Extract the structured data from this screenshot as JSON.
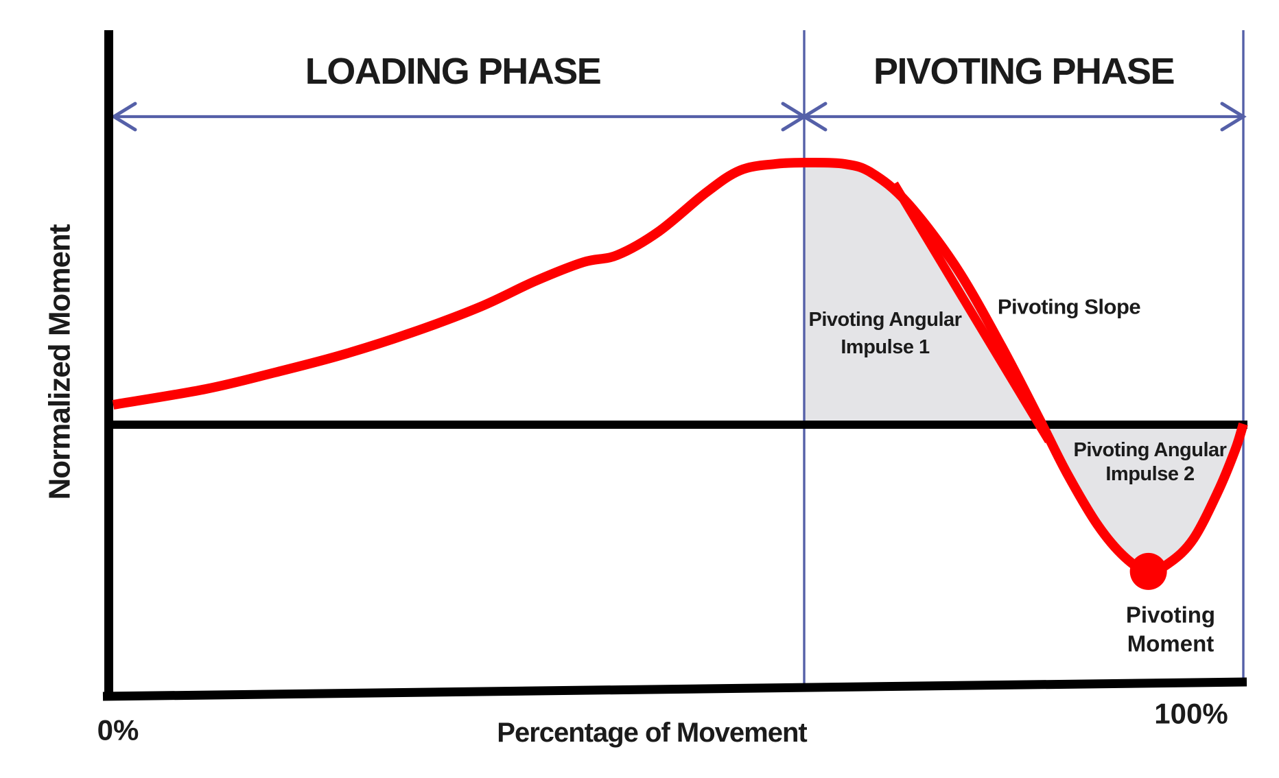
{
  "chart": {
    "title_loading": "LOADING PHASE",
    "title_pivoting": "PIVOTING PHASE",
    "y_axis_label": "Normalized Moment",
    "x_axis_label": "Percentage of Movement",
    "tick_left": "0%",
    "tick_right": "100%",
    "annotations": {
      "impulse1_line1": "Pivoting Angular",
      "impulse1_line2": "Impulse 1",
      "slope": "Pivoting Slope",
      "impulse2_line1": "Pivoting Angular",
      "impulse2_line2": "Impulse 2",
      "moment_line1": "Pivoting",
      "moment_line2": "Moment"
    },
    "colors": {
      "curve": "#fe0000",
      "guide": "#5560a8",
      "region_fill": "#e4e4e7",
      "axis": "#000000",
      "text": "#1b1b1b"
    }
  },
  "chart_data": {
    "type": "line",
    "title": "",
    "xlabel": "Percentage of Movement",
    "ylabel": "Normalized Moment",
    "x_range_percent": [
      0,
      100
    ],
    "y_range_normalized": [
      -0.75,
      1.1
    ],
    "grid": false,
    "legend": false,
    "phases": [
      {
        "name": "LOADING PHASE",
        "x_percent": [
          0,
          61.1
        ]
      },
      {
        "name": "PIVOTING PHASE",
        "x_percent": [
          61.1,
          100
        ]
      }
    ],
    "series": [
      {
        "name": "Normalized Moment",
        "points": [
          [
            0,
            0.076
          ],
          [
            8.2,
            0.136
          ],
          [
            14.3,
            0.199
          ],
          [
            20.3,
            0.267
          ],
          [
            26.4,
            0.351
          ],
          [
            32.5,
            0.45
          ],
          [
            37.3,
            0.547
          ],
          [
            41.6,
            0.62
          ],
          [
            44.6,
            0.647
          ],
          [
            48.3,
            0.738
          ],
          [
            52.5,
            0.887
          ],
          [
            55.5,
            0.971
          ],
          [
            58.6,
            0.995
          ],
          [
            61.3,
            1.0
          ],
          [
            64.7,
            0.995
          ],
          [
            67.1,
            0.961
          ],
          [
            70.3,
            0.845
          ],
          [
            74.6,
            0.6
          ],
          [
            78.6,
            0.3
          ],
          [
            82.0,
            0.018
          ],
          [
            84.4,
            -0.186
          ],
          [
            87.1,
            -0.382
          ],
          [
            89.5,
            -0.505
          ],
          [
            91.6,
            -0.56
          ],
          [
            93.5,
            -0.526
          ],
          [
            95.6,
            -0.435
          ],
          [
            97.8,
            -0.251
          ],
          [
            99.3,
            -0.094
          ],
          [
            100,
            0.003
          ]
        ]
      }
    ],
    "slope_line": {
      "label": "Pivoting Slope",
      "from": [
        69.1,
        0.919
      ],
      "to": [
        82.8,
        -0.062
      ]
    },
    "pivoting_moment_point": {
      "label": "Pivoting Moment",
      "x_percent": 91.6,
      "value": -0.56
    },
    "zero_crossing_percent": 82.0,
    "phase_divider_percent": 61.1,
    "shaded_regions": [
      {
        "label": "Pivoting Angular Impulse 1",
        "x_percent": [
          61.1,
          82.0
        ],
        "description": "area between curve and zero line, above zero"
      },
      {
        "label": "Pivoting Angular Impulse 2",
        "x_percent": [
          82.0,
          100
        ],
        "description": "area between curve and zero line, below zero"
      }
    ]
  }
}
